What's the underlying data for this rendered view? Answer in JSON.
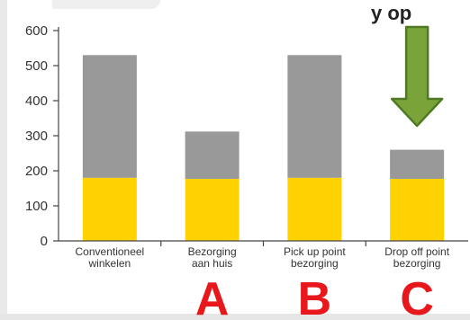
{
  "header_fragment": "y op",
  "chart_data": {
    "type": "bar",
    "stacked": true,
    "categories": [
      [
        "Conventioneel",
        "winkelen"
      ],
      [
        "Bezorging",
        "aan huis"
      ],
      [
        "Pick up point",
        "bezorging"
      ],
      [
        "Drop off point",
        "bezorging"
      ]
    ],
    "series": [
      {
        "values": [
          180,
          177,
          180,
          177
        ],
        "color": "#ffd200"
      },
      {
        "values": [
          350,
          135,
          350,
          83
        ],
        "color": "#999999"
      }
    ],
    "ylim": [
      0,
      600
    ],
    "yticks": [
      0,
      100,
      200,
      300,
      400,
      500,
      600
    ],
    "grid": false,
    "legend": "none",
    "annotations": {
      "letters": [
        {
          "text": "A",
          "category_index": 1
        },
        {
          "text": "B",
          "category_index": 2
        },
        {
          "text": "C",
          "category_index": 3
        }
      ],
      "arrow": {
        "category_index": 3,
        "direction": "down",
        "color": "#7aa43a",
        "outline": "#4f7a23"
      }
    }
  }
}
